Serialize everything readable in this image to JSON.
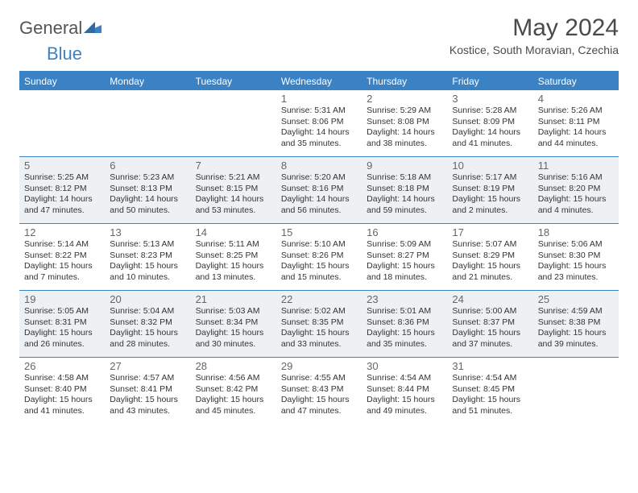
{
  "brand": {
    "word1": "General",
    "word2": "Blue"
  },
  "title": "May 2024",
  "subtitle": "Kostice, South Moravian, Czechia",
  "header_bg": "#3b82c4",
  "day_names": [
    "Sunday",
    "Monday",
    "Tuesday",
    "Wednesday",
    "Thursday",
    "Friday",
    "Saturday"
  ],
  "weeks": [
    {
      "cells": [
        {
          "empty": true
        },
        {
          "empty": true
        },
        {
          "empty": true
        },
        {
          "num": "1",
          "sunrise": "Sunrise: 5:31 AM",
          "sunset": "Sunset: 8:06 PM",
          "day1": "Daylight: 14 hours",
          "day2": "and 35 minutes."
        },
        {
          "num": "2",
          "sunrise": "Sunrise: 5:29 AM",
          "sunset": "Sunset: 8:08 PM",
          "day1": "Daylight: 14 hours",
          "day2": "and 38 minutes."
        },
        {
          "num": "3",
          "sunrise": "Sunrise: 5:28 AM",
          "sunset": "Sunset: 8:09 PM",
          "day1": "Daylight: 14 hours",
          "day2": "and 41 minutes."
        },
        {
          "num": "4",
          "sunrise": "Sunrise: 5:26 AM",
          "sunset": "Sunset: 8:11 PM",
          "day1": "Daylight: 14 hours",
          "day2": "and 44 minutes."
        }
      ]
    },
    {
      "cells": [
        {
          "num": "5",
          "sunrise": "Sunrise: 5:25 AM",
          "sunset": "Sunset: 8:12 PM",
          "day1": "Daylight: 14 hours",
          "day2": "and 47 minutes."
        },
        {
          "num": "6",
          "sunrise": "Sunrise: 5:23 AM",
          "sunset": "Sunset: 8:13 PM",
          "day1": "Daylight: 14 hours",
          "day2": "and 50 minutes."
        },
        {
          "num": "7",
          "sunrise": "Sunrise: 5:21 AM",
          "sunset": "Sunset: 8:15 PM",
          "day1": "Daylight: 14 hours",
          "day2": "and 53 minutes."
        },
        {
          "num": "8",
          "sunrise": "Sunrise: 5:20 AM",
          "sunset": "Sunset: 8:16 PM",
          "day1": "Daylight: 14 hours",
          "day2": "and 56 minutes."
        },
        {
          "num": "9",
          "sunrise": "Sunrise: 5:18 AM",
          "sunset": "Sunset: 8:18 PM",
          "day1": "Daylight: 14 hours",
          "day2": "and 59 minutes."
        },
        {
          "num": "10",
          "sunrise": "Sunrise: 5:17 AM",
          "sunset": "Sunset: 8:19 PM",
          "day1": "Daylight: 15 hours",
          "day2": "and 2 minutes."
        },
        {
          "num": "11",
          "sunrise": "Sunrise: 5:16 AM",
          "sunset": "Sunset: 8:20 PM",
          "day1": "Daylight: 15 hours",
          "day2": "and 4 minutes."
        }
      ]
    },
    {
      "cells": [
        {
          "num": "12",
          "sunrise": "Sunrise: 5:14 AM",
          "sunset": "Sunset: 8:22 PM",
          "day1": "Daylight: 15 hours",
          "day2": "and 7 minutes."
        },
        {
          "num": "13",
          "sunrise": "Sunrise: 5:13 AM",
          "sunset": "Sunset: 8:23 PM",
          "day1": "Daylight: 15 hours",
          "day2": "and 10 minutes."
        },
        {
          "num": "14",
          "sunrise": "Sunrise: 5:11 AM",
          "sunset": "Sunset: 8:25 PM",
          "day1": "Daylight: 15 hours",
          "day2": "and 13 minutes."
        },
        {
          "num": "15",
          "sunrise": "Sunrise: 5:10 AM",
          "sunset": "Sunset: 8:26 PM",
          "day1": "Daylight: 15 hours",
          "day2": "and 15 minutes."
        },
        {
          "num": "16",
          "sunrise": "Sunrise: 5:09 AM",
          "sunset": "Sunset: 8:27 PM",
          "day1": "Daylight: 15 hours",
          "day2": "and 18 minutes."
        },
        {
          "num": "17",
          "sunrise": "Sunrise: 5:07 AM",
          "sunset": "Sunset: 8:29 PM",
          "day1": "Daylight: 15 hours",
          "day2": "and 21 minutes."
        },
        {
          "num": "18",
          "sunrise": "Sunrise: 5:06 AM",
          "sunset": "Sunset: 8:30 PM",
          "day1": "Daylight: 15 hours",
          "day2": "and 23 minutes."
        }
      ]
    },
    {
      "cells": [
        {
          "num": "19",
          "sunrise": "Sunrise: 5:05 AM",
          "sunset": "Sunset: 8:31 PM",
          "day1": "Daylight: 15 hours",
          "day2": "and 26 minutes."
        },
        {
          "num": "20",
          "sunrise": "Sunrise: 5:04 AM",
          "sunset": "Sunset: 8:32 PM",
          "day1": "Daylight: 15 hours",
          "day2": "and 28 minutes."
        },
        {
          "num": "21",
          "sunrise": "Sunrise: 5:03 AM",
          "sunset": "Sunset: 8:34 PM",
          "day1": "Daylight: 15 hours",
          "day2": "and 30 minutes."
        },
        {
          "num": "22",
          "sunrise": "Sunrise: 5:02 AM",
          "sunset": "Sunset: 8:35 PM",
          "day1": "Daylight: 15 hours",
          "day2": "and 33 minutes."
        },
        {
          "num": "23",
          "sunrise": "Sunrise: 5:01 AM",
          "sunset": "Sunset: 8:36 PM",
          "day1": "Daylight: 15 hours",
          "day2": "and 35 minutes."
        },
        {
          "num": "24",
          "sunrise": "Sunrise: 5:00 AM",
          "sunset": "Sunset: 8:37 PM",
          "day1": "Daylight: 15 hours",
          "day2": "and 37 minutes."
        },
        {
          "num": "25",
          "sunrise": "Sunrise: 4:59 AM",
          "sunset": "Sunset: 8:38 PM",
          "day1": "Daylight: 15 hours",
          "day2": "and 39 minutes."
        }
      ]
    },
    {
      "cells": [
        {
          "num": "26",
          "sunrise": "Sunrise: 4:58 AM",
          "sunset": "Sunset: 8:40 PM",
          "day1": "Daylight: 15 hours",
          "day2": "and 41 minutes."
        },
        {
          "num": "27",
          "sunrise": "Sunrise: 4:57 AM",
          "sunset": "Sunset: 8:41 PM",
          "day1": "Daylight: 15 hours",
          "day2": "and 43 minutes."
        },
        {
          "num": "28",
          "sunrise": "Sunrise: 4:56 AM",
          "sunset": "Sunset: 8:42 PM",
          "day1": "Daylight: 15 hours",
          "day2": "and 45 minutes."
        },
        {
          "num": "29",
          "sunrise": "Sunrise: 4:55 AM",
          "sunset": "Sunset: 8:43 PM",
          "day1": "Daylight: 15 hours",
          "day2": "and 47 minutes."
        },
        {
          "num": "30",
          "sunrise": "Sunrise: 4:54 AM",
          "sunset": "Sunset: 8:44 PM",
          "day1": "Daylight: 15 hours",
          "day2": "and 49 minutes."
        },
        {
          "num": "31",
          "sunrise": "Sunrise: 4:54 AM",
          "sunset": "Sunset: 8:45 PM",
          "day1": "Daylight: 15 hours",
          "day2": "and 51 minutes."
        },
        {
          "empty": true
        }
      ]
    }
  ]
}
